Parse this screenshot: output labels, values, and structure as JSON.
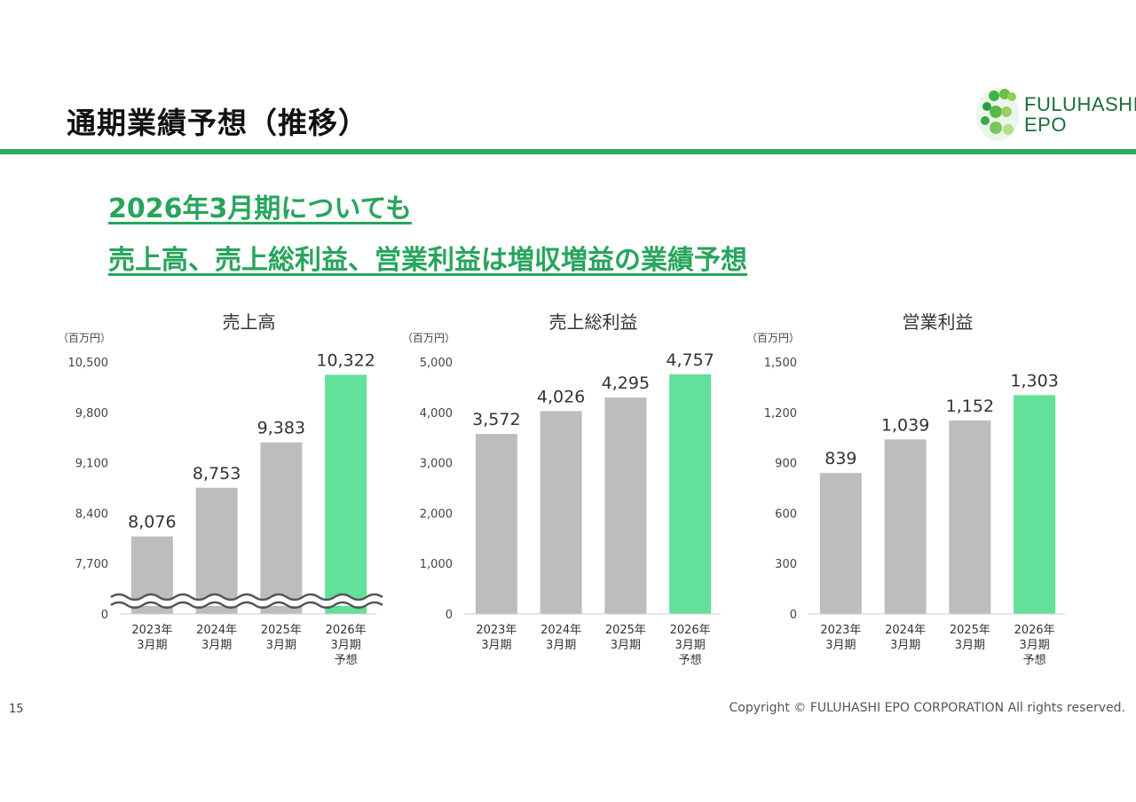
{
  "page": {
    "title": "通期業績予想（推移）",
    "headline_1": "2026年3月期についても",
    "headline_2": "売上高、売上総利益、営業利益は増収増益の業績予想",
    "page_number": "15",
    "copyright": "Copyright © FULUHASHI EPO CORPORATION All rights reserved."
  },
  "logo": {
    "line1": "FULUHASHI",
    "line2": "EPO"
  },
  "colors": {
    "accent": "#2eab5f",
    "headline": "#27a55c",
    "bar_actual": "#bdbdbd",
    "bar_forecast": "#63e09a",
    "axis": "#cfcfcf"
  },
  "chart_data": [
    {
      "type": "bar",
      "title": "売上高",
      "unit_label": "（百万円）",
      "categories": [
        [
          "2023年",
          "3月期"
        ],
        [
          "2024年",
          "3月期"
        ],
        [
          "2025年",
          "3月期"
        ],
        [
          "2026年",
          "3月期",
          "予想"
        ]
      ],
      "values": [
        8076,
        8753,
        9383,
        10322
      ],
      "value_labels": [
        "8,076",
        "8,753",
        "9,383",
        "10,322"
      ],
      "forecast_index": 3,
      "ylim": [
        7000,
        10500
      ],
      "yticks": [
        0,
        7700,
        8400,
        9100,
        9800,
        10500
      ],
      "ytick_labels": [
        "0",
        "7,700",
        "8,400",
        "9,100",
        "9,800",
        "10,500"
      ],
      "axis_break": true,
      "grid": false
    },
    {
      "type": "bar",
      "title": "売上総利益",
      "unit_label": "（百万円）",
      "categories": [
        [
          "2023年",
          "3月期"
        ],
        [
          "2024年",
          "3月期"
        ],
        [
          "2025年",
          "3月期"
        ],
        [
          "2026年",
          "3月期",
          "予想"
        ]
      ],
      "values": [
        3572,
        4026,
        4295,
        4757
      ],
      "value_labels": [
        "3,572",
        "4,026",
        "4,295",
        "4,757"
      ],
      "forecast_index": 3,
      "ylim": [
        0,
        5000
      ],
      "yticks": [
        0,
        1000,
        2000,
        3000,
        4000,
        5000
      ],
      "ytick_labels": [
        "0",
        "1,000",
        "2,000",
        "3,000",
        "4,000",
        "5,000"
      ],
      "axis_break": false,
      "grid": false
    },
    {
      "type": "bar",
      "title": "営業利益",
      "unit_label": "（百万円）",
      "categories": [
        [
          "2023年",
          "3月期"
        ],
        [
          "2024年",
          "3月期"
        ],
        [
          "2025年",
          "3月期"
        ],
        [
          "2026年",
          "3月期",
          "予想"
        ]
      ],
      "values": [
        839,
        1039,
        1152,
        1303
      ],
      "value_labels": [
        "839",
        "1,039",
        "1,152",
        "1,303"
      ],
      "forecast_index": 3,
      "ylim": [
        0,
        1500
      ],
      "yticks": [
        0,
        300,
        600,
        900,
        1200,
        1500
      ],
      "ytick_labels": [
        "0",
        "300",
        "600",
        "900",
        "1,200",
        "1,500"
      ],
      "axis_break": false,
      "grid": false
    }
  ]
}
